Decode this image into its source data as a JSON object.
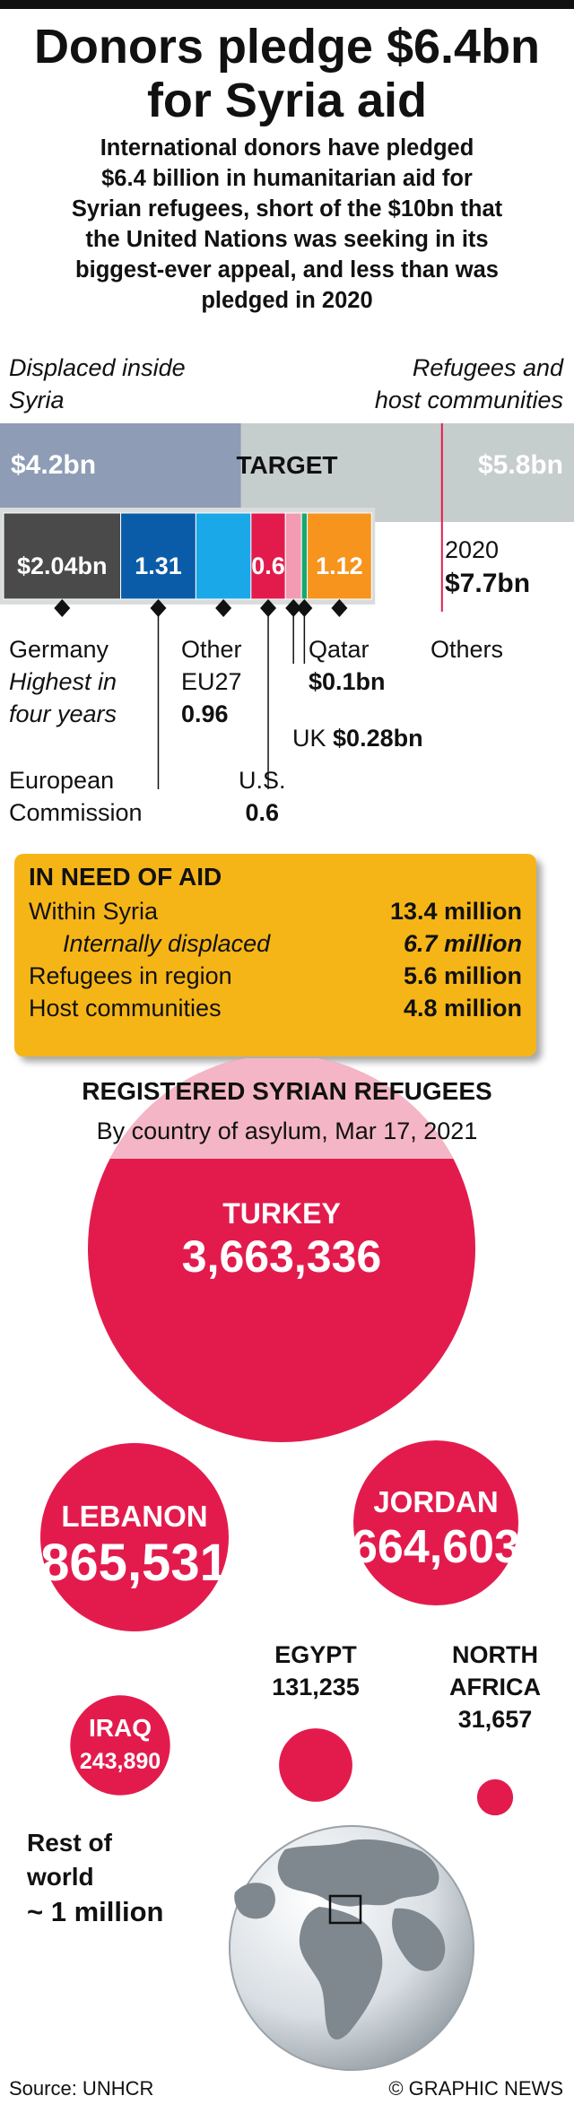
{
  "headline": {
    "title_line1": "Donors pledge $6.4bn",
    "title_line2": "for Syria aid",
    "subtitle_lines": [
      "International donors have pledged",
      "$6.4 billion in humanitarian aid for",
      "Syrian refugees, short of the $10bn that",
      "the United Nations was seeking in its",
      "biggest-ever appeal, and less than was",
      "pledged in 2020"
    ]
  },
  "target_bar": {
    "left_label_line1": "Displaced inside",
    "left_label_line2": "Syria",
    "right_label_line1": "Refugees and",
    "right_label_line2": "host communities",
    "inside_value": "$4.2bn",
    "center_label": "TARGET",
    "outside_value": "$5.8bn",
    "year_2020_label": "2020",
    "year_2020_value": "$7.7bn",
    "colors": {
      "inside": "#8e9cb6",
      "outside": "#c6cdcd"
    }
  },
  "chart_data": {
    "type": "bar",
    "title": "",
    "orientation": "horizontal-stacked",
    "unit": "$bn",
    "target": {
      "displaced_inside_syria": 4.2,
      "refugees_and_host_communities": 5.8,
      "total": 10
    },
    "pledged_2020": 7.7,
    "pledges": [
      {
        "donor": "Germany",
        "value": 2.04,
        "label": "$2.04bn",
        "note_line1": "Highest in",
        "note_line2": "four years",
        "color": "#4a4a4a"
      },
      {
        "donor": "European Commission",
        "value": 1.31,
        "label": "1.31",
        "color": "#0b5ca8"
      },
      {
        "donor": "Other EU27",
        "value": 0.96,
        "label": "0.96",
        "color": "#1aa8e8"
      },
      {
        "donor": "U.S.",
        "value": 0.6,
        "label": "0.6",
        "color": "#e31b4d"
      },
      {
        "donor": "UK",
        "value": 0.28,
        "label": "$0.28bn",
        "color": "#f29bb2"
      },
      {
        "donor": "Qatar",
        "value": 0.1,
        "label": "$0.1bn",
        "color": "#15a870"
      },
      {
        "donor": "Others",
        "value": 1.12,
        "label": "1.12",
        "color": "#f7941d"
      }
    ]
  },
  "donor_labels": {
    "germany": "Germany",
    "germany_note1": "Highest in",
    "germany_note2": "four years",
    "other_eu1": "Other",
    "other_eu2": "EU27",
    "other_eu_value": "0.96",
    "qatar": "Qatar",
    "qatar_value": "$0.1bn",
    "others": "Others",
    "uk": "UK",
    "uk_value": "$0.28bn",
    "ec1": "European",
    "ec2": "Commission",
    "us": "U.S.",
    "us_value": "0.6"
  },
  "need_of_aid": {
    "heading": "IN NEED OF AID",
    "rows": [
      {
        "label": "Within Syria",
        "value": "13.4 million",
        "italic": false
      },
      {
        "label": "Internally displaced",
        "value": "6.7 million",
        "italic": true
      },
      {
        "label": "Refugees in region",
        "value": "5.6 million",
        "italic": false
      },
      {
        "label": "Host communities",
        "value": "4.8 million",
        "italic": false
      }
    ]
  },
  "refugees": {
    "heading": "REGISTERED SYRIAN REFUGEES",
    "subheading": "By country of asylum, Mar 17, 2021",
    "countries": [
      {
        "name": "TURKEY",
        "value": 3663336,
        "value_label": "3,663,336"
      },
      {
        "name": "LEBANON",
        "value": 865531,
        "value_label": "865,531"
      },
      {
        "name": "JORDAN",
        "value": 664603,
        "value_label": "664,603"
      },
      {
        "name": "IRAQ",
        "value": 243890,
        "value_label": "243,890"
      },
      {
        "name": "EGYPT",
        "value": 131235,
        "value_label": "131,235"
      },
      {
        "name_line1": "NORTH",
        "name_line2": "AFRICA",
        "value": 31657,
        "value_label": "31,657"
      }
    ],
    "rest_line1": "Rest of",
    "rest_line2": "world",
    "rest_line3": "~ 1 million",
    "colors": {
      "bubble": "#e31b4d",
      "header_band": "#f4b6c6"
    }
  },
  "footer": {
    "source": "Source: UNHCR",
    "credit": "© GRAPHIC NEWS"
  }
}
